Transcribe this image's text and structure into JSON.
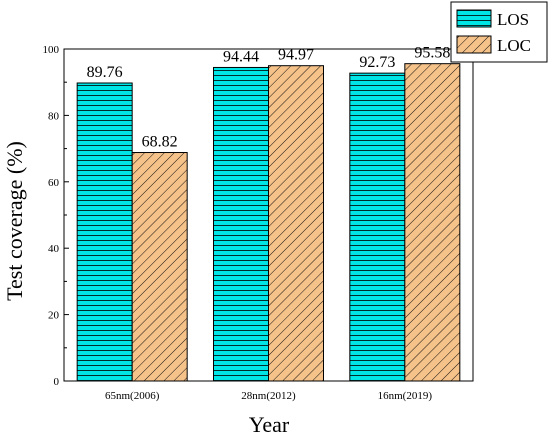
{
  "chart_data": {
    "type": "bar",
    "title": "",
    "xlabel": "Year",
    "ylabel": "Test coverage (%)",
    "categories": [
      "65nm(2006)",
      "28nm(2012)",
      "16nm(2019)"
    ],
    "ylim": [
      0,
      100
    ],
    "yticks": [
      "0",
      "20",
      "40",
      "60",
      "80",
      "100"
    ],
    "series": [
      {
        "name": "LOS",
        "values": [
          89.76,
          94.44,
          92.73
        ],
        "labels": [
          "89.76",
          "94.44",
          "92.73"
        ],
        "color": "#00e5e5",
        "pattern": "horizontal-lines"
      },
      {
        "name": "LOC",
        "values": [
          68.82,
          94.97,
          95.58
        ],
        "labels": [
          "68.82",
          "94.97",
          "95.58"
        ],
        "color": "#f5c28a",
        "pattern": "diagonal-lines"
      }
    ],
    "legend_position": "top-right",
    "grid": false
  }
}
